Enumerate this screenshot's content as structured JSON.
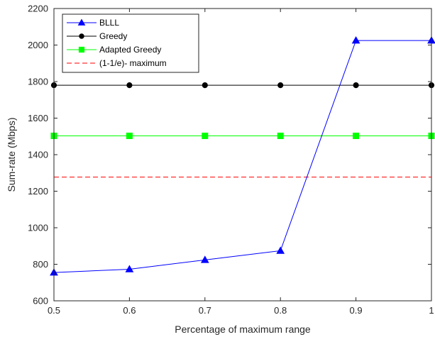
{
  "chart_data": {
    "type": "line",
    "xlabel": "Percentage of maximum range",
    "ylabel": "Sum-rate (Mbps)",
    "xlim": [
      0.5,
      1
    ],
    "ylim": [
      600,
      2200
    ],
    "xticks": [
      0.5,
      0.6,
      0.7,
      0.8,
      0.9,
      1
    ],
    "xtick_labels": [
      "0.5",
      "0.6",
      "0.7",
      "0.8",
      "0.9",
      "1"
    ],
    "yticks": [
      600,
      800,
      1000,
      1200,
      1400,
      1600,
      1800,
      2000,
      2200
    ],
    "ytick_labels": [
      "600",
      "800",
      "1000",
      "1200",
      "1400",
      "1600",
      "1800",
      "2000",
      "2200"
    ],
    "grid": false,
    "legend_position": "top-left",
    "x": [
      0.5,
      0.6,
      0.7,
      0.8,
      0.9,
      1.0
    ],
    "series": [
      {
        "name": "BLLL",
        "color": "#0000ff",
        "marker": "triangle",
        "dash": "solid",
        "values": [
          755,
          773,
          824,
          874,
          2025,
          2025
        ]
      },
      {
        "name": "Greedy",
        "color": "#000000",
        "marker": "circle",
        "dash": "solid",
        "values": [
          1780,
          1780,
          1780,
          1780,
          1780,
          1780
        ]
      },
      {
        "name": "Adapted Greedy",
        "color": "#00ff00",
        "marker": "square",
        "dash": "solid",
        "values": [
          1503,
          1503,
          1503,
          1503,
          1503,
          1503
        ]
      },
      {
        "name": "(1-1/e)- maximum",
        "color": "#ff0000",
        "marker": "none",
        "dash": "dashed",
        "values": [
          1277,
          1277,
          1277,
          1277,
          1277,
          1277
        ]
      }
    ]
  }
}
